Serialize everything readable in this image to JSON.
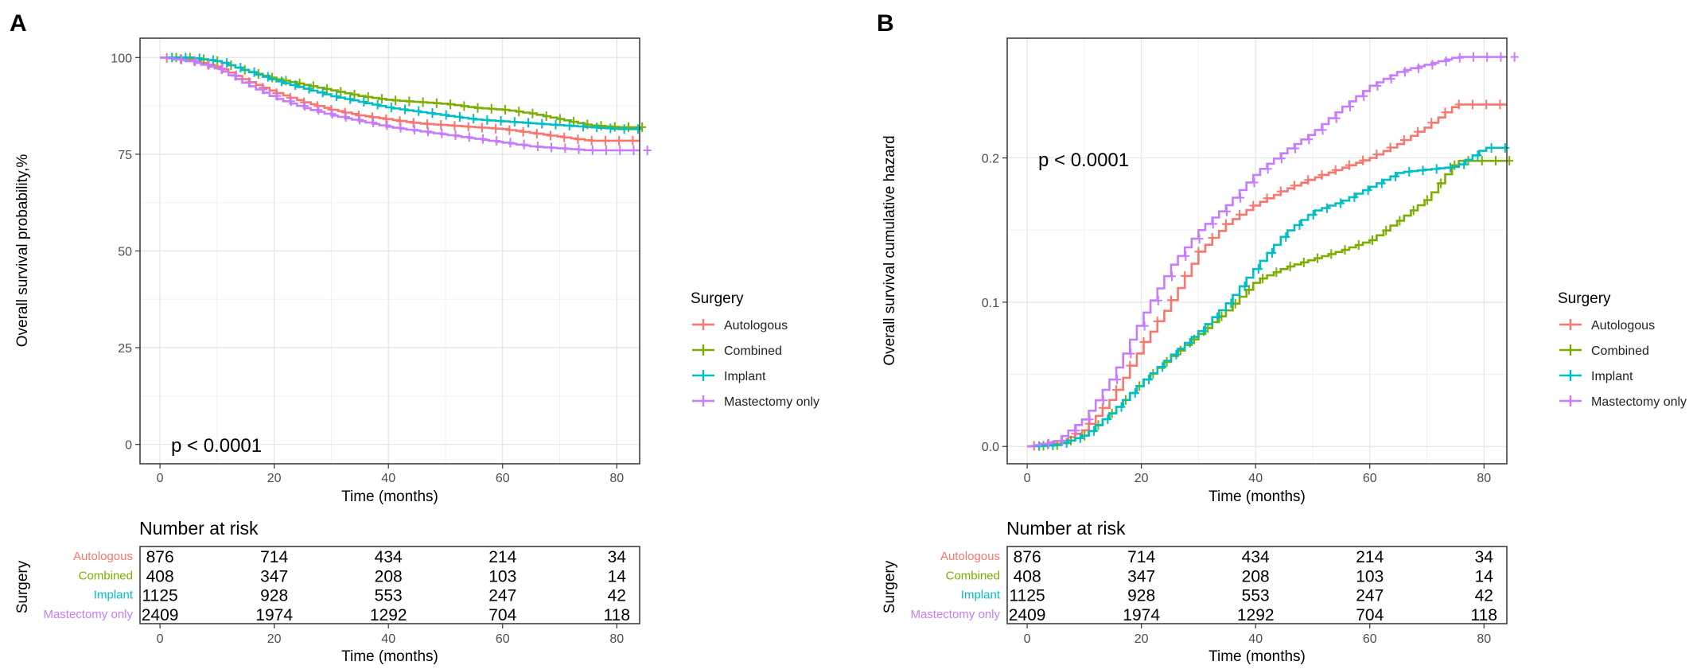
{
  "panels": [
    {
      "letter": "A",
      "p_value": "p < 0.0001",
      "legend_title": "Surgery",
      "risk_title": "Number at risk",
      "risk_ylabel": "Surgery",
      "risk_xlabel": "Time (months)",
      "risk_x_ticks": [
        "0",
        "20",
        "40",
        "60",
        "80"
      ]
    },
    {
      "letter": "B",
      "p_value": "p < 0.0001",
      "legend_title": "Surgery",
      "risk_title": "Number at risk",
      "risk_ylabel": "Surgery",
      "risk_xlabel": "Time (months)",
      "risk_x_ticks": [
        "0",
        "20",
        "40",
        "60",
        "80"
      ]
    }
  ],
  "chart_data": [
    {
      "type": "line",
      "title": "",
      "xlabel": "Time (months)",
      "ylabel": "Overall survival probability,%",
      "xlim": [
        -3.5,
        84
      ],
      "ylim": [
        -5,
        105
      ],
      "x_ticks": [
        0,
        20,
        40,
        60,
        80
      ],
      "y_ticks": [
        0,
        25,
        50,
        75,
        100
      ],
      "grid": true,
      "legend_position": "right",
      "series": [
        {
          "name": "Autologous",
          "color": "#F8766D",
          "x": [
            0,
            5,
            10,
            15,
            20,
            25,
            30,
            35,
            40,
            45,
            50,
            55,
            60,
            65,
            70,
            75,
            80,
            84
          ],
          "y": [
            100,
            99.5,
            97.5,
            94,
            91,
            88.5,
            86.5,
            85,
            84,
            83,
            82.5,
            82,
            81.5,
            80.5,
            79.5,
            78.5,
            78.5,
            78.5
          ]
        },
        {
          "name": "Combined",
          "color": "#7CAE00",
          "x": [
            0,
            5,
            10,
            15,
            20,
            25,
            30,
            35,
            40,
            45,
            50,
            55,
            60,
            65,
            70,
            75,
            80,
            84
          ],
          "y": [
            100,
            100,
            99,
            96.5,
            94.5,
            93,
            91.5,
            90,
            89,
            88.5,
            88,
            87,
            86.5,
            85.5,
            84,
            82.5,
            82,
            82
          ]
        },
        {
          "name": "Implant",
          "color": "#00BFC4",
          "x": [
            0,
            5,
            10,
            15,
            20,
            25,
            30,
            35,
            40,
            45,
            50,
            55,
            60,
            65,
            70,
            75,
            80,
            84
          ],
          "y": [
            100,
            100,
            99,
            96.5,
            94,
            92,
            90,
            88.5,
            87,
            86,
            85,
            84,
            83.5,
            83,
            82.5,
            82,
            81.5,
            81.5
          ]
        },
        {
          "name": "Mastectomy only",
          "color": "#C77CFF",
          "x": [
            0,
            5,
            10,
            15,
            20,
            25,
            30,
            35,
            40,
            45,
            50,
            55,
            60,
            65,
            70,
            75,
            80,
            84
          ],
          "y": [
            100,
            99,
            97,
            93,
            89.5,
            87,
            85,
            83.5,
            82,
            81,
            80,
            79,
            78,
            77,
            76.5,
            76,
            76,
            76
          ]
        }
      ],
      "risk_table": {
        "time_points": [
          0,
          20,
          40,
          60,
          80
        ],
        "rows": [
          {
            "name": "Autologous",
            "color": "#F8766D",
            "values": [
              "876",
              "714",
              "434",
              "214",
              "34"
            ]
          },
          {
            "name": "Combined",
            "color": "#7CAE00",
            "values": [
              "408",
              "347",
              "208",
              "103",
              "14"
            ]
          },
          {
            "name": "Implant",
            "color": "#00BFC4",
            "values": [
              "1125",
              "928",
              "553",
              "247",
              "42"
            ]
          },
          {
            "name": "Mastectomy only",
            "color": "#C77CFF",
            "values": [
              "2409",
              "1974",
              "1292",
              "704",
              "118"
            ]
          }
        ]
      }
    },
    {
      "type": "line",
      "title": "",
      "xlabel": "Time (months)",
      "ylabel": "Overall survival cumulative hazard",
      "xlim": [
        -3.5,
        84
      ],
      "ylim": [
        -0.012,
        0.283
      ],
      "x_ticks": [
        0,
        20,
        40,
        60,
        80
      ],
      "y_ticks": [
        0.0,
        0.1,
        0.2
      ],
      "y_tick_labels": [
        "0.0",
        "0.1",
        "0.2"
      ],
      "grid": true,
      "legend_position": "right",
      "series": [
        {
          "name": "Autologous",
          "color": "#F8766D",
          "x": [
            0,
            5,
            10,
            15,
            20,
            25,
            30,
            35,
            40,
            45,
            50,
            55,
            60,
            65,
            70,
            75,
            80,
            84
          ],
          "y": [
            0,
            0.002,
            0.012,
            0.035,
            0.07,
            0.1,
            0.135,
            0.155,
            0.168,
            0.178,
            0.186,
            0.193,
            0.2,
            0.21,
            0.222,
            0.237,
            0.237,
            0.237
          ]
        },
        {
          "name": "Combined",
          "color": "#7CAE00",
          "x": [
            0,
            5,
            10,
            15,
            20,
            25,
            30,
            35,
            40,
            45,
            50,
            55,
            60,
            65,
            70,
            75,
            80,
            84
          ],
          "y": [
            0,
            0.001,
            0.008,
            0.025,
            0.045,
            0.062,
            0.078,
            0.095,
            0.115,
            0.124,
            0.13,
            0.136,
            0.143,
            0.157,
            0.172,
            0.198,
            0.198,
            0.198
          ]
        },
        {
          "name": "Implant",
          "color": "#00BFC4",
          "x": [
            0,
            5,
            10,
            15,
            20,
            25,
            30,
            35,
            40,
            45,
            50,
            55,
            60,
            65,
            70,
            75,
            80,
            84
          ],
          "y": [
            0,
            0.001,
            0.008,
            0.025,
            0.045,
            0.063,
            0.08,
            0.1,
            0.125,
            0.148,
            0.163,
            0.17,
            0.18,
            0.19,
            0.192,
            0.194,
            0.207,
            0.207
          ]
        },
        {
          "name": "Mastectomy only",
          "color": "#C77CFF",
          "x": [
            0,
            5,
            10,
            15,
            20,
            25,
            30,
            35,
            40,
            45,
            50,
            55,
            60,
            65,
            70,
            75,
            80,
            84
          ],
          "y": [
            0,
            0.004,
            0.02,
            0.05,
            0.09,
            0.125,
            0.15,
            0.168,
            0.19,
            0.205,
            0.218,
            0.235,
            0.25,
            0.26,
            0.265,
            0.27,
            0.27,
            0.27
          ]
        }
      ],
      "risk_table": {
        "time_points": [
          0,
          20,
          40,
          60,
          80
        ],
        "rows": [
          {
            "name": "Autologous",
            "color": "#F8766D",
            "values": [
              "876",
              "714",
              "434",
              "214",
              "34"
            ]
          },
          {
            "name": "Combined",
            "color": "#7CAE00",
            "values": [
              "408",
              "347",
              "208",
              "103",
              "14"
            ]
          },
          {
            "name": "Implant",
            "color": "#00BFC4",
            "values": [
              "1125",
              "928",
              "553",
              "247",
              "42"
            ]
          },
          {
            "name": "Mastectomy only",
            "color": "#C77CFF",
            "values": [
              "2409",
              "1974",
              "1292",
              "704",
              "118"
            ]
          }
        ]
      }
    }
  ]
}
